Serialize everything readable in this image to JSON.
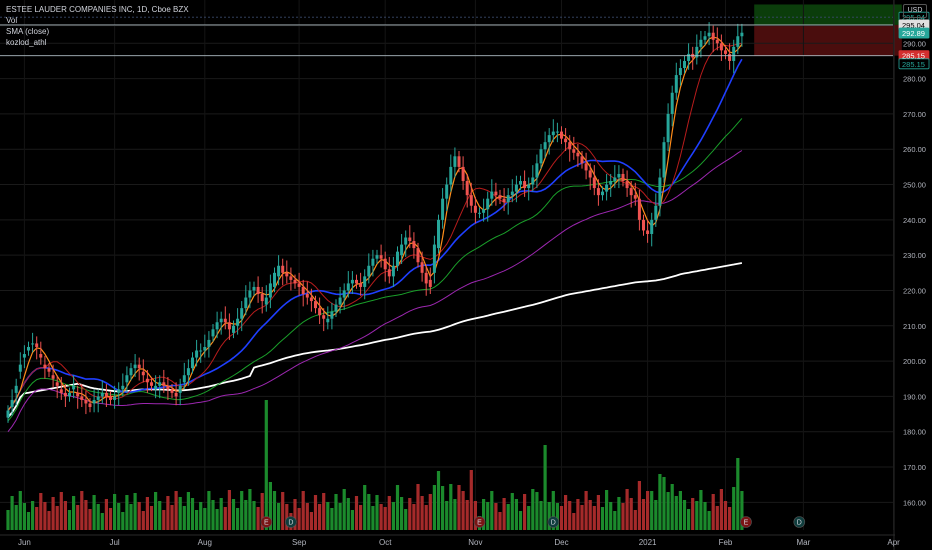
{
  "legend": {
    "symbol_line": "ESTEE LAUDER COMPANIES INC, 1D, Cboe BZX",
    "vol_label": "Vol",
    "sma_label": "SMA (close)",
    "indicator_label": "kozlod_athl"
  },
  "currency": "USD",
  "colors": {
    "up": "#26a69a",
    "down": "#ef5350",
    "vol_up": "#1b8a2c",
    "vol_down": "#a52a2a",
    "ma_fast": "#ff8c1a",
    "ma_red": "#b71c1c",
    "ma_blue": "#1f3fff",
    "ma_green": "#1a9e2a",
    "ma_purple": "#9c27b0",
    "ma_white": "#ffffff",
    "target_zone": "#0b3d0b",
    "stop_zone": "#4a0d0d"
  },
  "chart_data": {
    "type": "candlestick",
    "title": "ESTEE LAUDER COMPANIES INC, 1D, Cboe BZX",
    "ylim": [
      155,
      300
    ],
    "ytick_labels": [
      "160.00",
      "170.00",
      "180.00",
      "190.00",
      "200.00",
      "210.00",
      "220.00",
      "230.00",
      "240.00",
      "250.00",
      "260.00",
      "270.00",
      "280.00",
      "290.00",
      "295.00"
    ],
    "ytick_values": [
      160,
      170,
      180,
      190,
      200,
      210,
      220,
      230,
      240,
      250,
      260,
      270,
      280,
      290,
      295
    ],
    "month_labels": [
      "Jun",
      "Jul",
      "Aug",
      "Sep",
      "Oct",
      "Nov",
      "Dec",
      "2021",
      "Feb",
      "Mar",
      "Apr"
    ],
    "month_day_index": [
      4,
      26,
      48,
      71,
      92,
      114,
      135,
      156,
      175,
      194,
      216
    ],
    "price_tags": [
      {
        "label": "295.04",
        "value": 297.4,
        "style": "outline-teal"
      },
      {
        "label": "295.04",
        "value": 295.2,
        "style": "white"
      },
      {
        "label": "292.89",
        "value": 292.9,
        "style": "teal"
      },
      {
        "label": "285.15",
        "value": 286.5,
        "style": "red"
      },
      {
        "label": "285.15",
        "value": 284.2,
        "style": "outline-teal"
      }
    ],
    "levels": [
      295.2,
      286.5
    ],
    "zones": {
      "target_top": 301,
      "target_bottom": 295.2,
      "stop_top": 295.2,
      "stop_bottom": 286.5,
      "start_day": 182,
      "end_day": 218
    },
    "events": [
      {
        "label": "E",
        "day": 63
      },
      {
        "label": "D",
        "day": 69
      },
      {
        "label": "E",
        "day": 115
      },
      {
        "label": "D",
        "day": 133
      },
      {
        "label": "E",
        "day": 180
      },
      {
        "label": "D",
        "day": 193
      }
    ],
    "close": [
      186,
      189,
      193,
      199,
      202,
      204,
      205,
      204,
      201,
      198,
      197,
      195,
      193,
      191,
      190,
      191,
      193,
      190,
      189,
      188,
      187,
      189,
      190,
      191,
      190,
      189,
      190,
      192,
      193,
      196,
      198,
      199,
      198,
      196,
      194,
      193,
      193,
      194,
      193,
      192,
      191,
      190,
      193,
      196,
      198,
      201,
      203,
      203,
      204,
      206,
      209,
      211,
      212,
      211,
      209,
      210,
      212,
      215,
      218,
      220,
      221,
      219,
      217,
      218,
      222,
      225,
      227,
      225,
      224,
      223,
      222,
      221,
      219,
      218,
      217,
      215,
      213,
      212,
      212,
      214,
      216,
      218,
      220,
      222,
      223,
      222,
      221,
      224,
      227,
      229,
      230,
      229,
      226,
      224,
      227,
      231,
      233,
      235,
      234,
      232,
      228,
      225,
      222,
      221,
      233,
      240,
      246,
      250,
      255,
      258,
      255,
      251,
      247,
      244,
      242,
      242,
      243,
      246,
      248,
      247,
      246,
      245,
      247,
      248,
      250,
      251,
      249,
      250,
      252,
      256,
      260,
      262,
      264,
      265,
      265,
      263,
      262,
      260,
      259,
      258,
      256,
      254,
      252,
      249,
      247,
      248,
      250,
      251,
      252,
      253,
      251,
      249,
      247,
      246,
      240,
      237,
      236,
      240,
      244,
      252,
      262,
      270,
      276,
      281,
      283,
      285,
      287,
      286,
      289,
      291,
      292,
      293,
      291,
      290,
      288,
      287,
      285,
      289,
      292,
      293
    ],
    "open": [
      184,
      187,
      191,
      197,
      201,
      203,
      205,
      205,
      202,
      199,
      198,
      196,
      194,
      192,
      191,
      190,
      192,
      191,
      190,
      189,
      188,
      188,
      189,
      190,
      191,
      190,
      189,
      191,
      192,
      194,
      196,
      198,
      199,
      197,
      195,
      194,
      192,
      193,
      194,
      193,
      192,
      191,
      191,
      194,
      196,
      198,
      201,
      203,
      203,
      204,
      207,
      209,
      211,
      212,
      211,
      208,
      210,
      212,
      215,
      218,
      220,
      221,
      219,
      216,
      218,
      221,
      224,
      227,
      225,
      224,
      223,
      222,
      221,
      219,
      218,
      217,
      215,
      213,
      211,
      212,
      214,
      216,
      218,
      220,
      222,
      223,
      222,
      221,
      224,
      227,
      229,
      230,
      229,
      226,
      224,
      227,
      230,
      233,
      235,
      234,
      232,
      228,
      225,
      223,
      225,
      232,
      240,
      246,
      250,
      255,
      258,
      255,
      251,
      247,
      244,
      242,
      242,
      243,
      246,
      248,
      247,
      246,
      245,
      247,
      248,
      250,
      251,
      249,
      250,
      252,
      256,
      260,
      262,
      264,
      265,
      265,
      263,
      262,
      260,
      259,
      258,
      256,
      254,
      252,
      249,
      247,
      248,
      250,
      251,
      252,
      253,
      251,
      249,
      247,
      246,
      240,
      237,
      236,
      240,
      244,
      252,
      262,
      270,
      276,
      281,
      283,
      285,
      287,
      286,
      289,
      291,
      292,
      293,
      291,
      290,
      288,
      287,
      285,
      289,
      292
    ]
  }
}
